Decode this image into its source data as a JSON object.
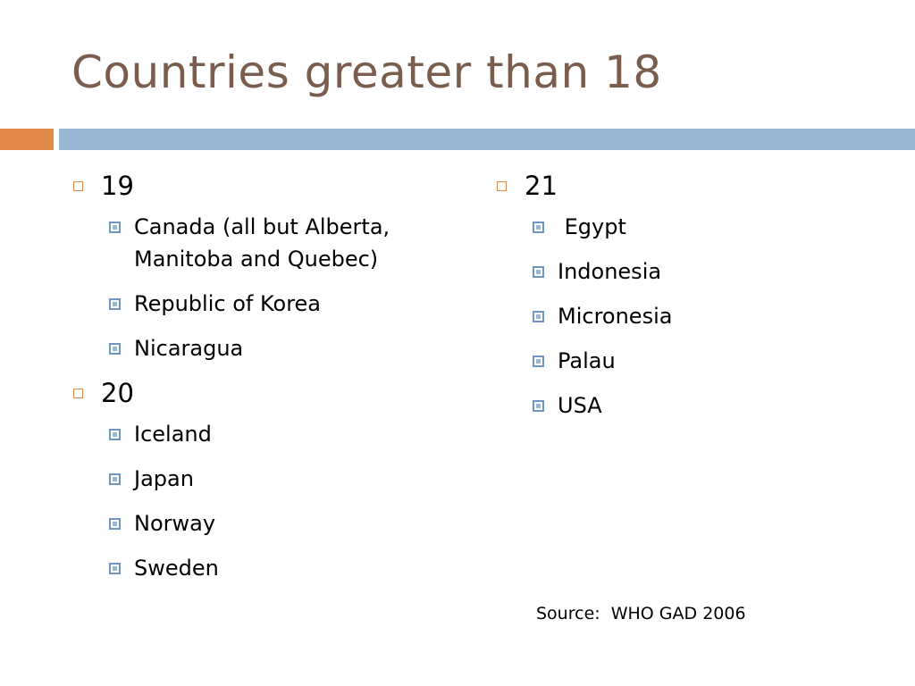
{
  "slide": {
    "title": "Countries greater than 18",
    "accent_colors": {
      "title": "#7a5d4d",
      "orange": "#e18a4a",
      "blue": "#97b7d2"
    }
  },
  "left_column": [
    {
      "label": "19",
      "items": [
        "Canada (all but Alberta, Manitoba and Quebec)",
        "Republic of Korea",
        "Nicaragua"
      ]
    },
    {
      "label": "20",
      "items": [
        "Iceland",
        "Japan",
        "Norway",
        "Sweden"
      ]
    }
  ],
  "right_column": [
    {
      "label": "21",
      "items": [
        " Egypt",
        "Indonesia",
        "Micronesia",
        "Palau",
        "USA"
      ]
    }
  ],
  "source": "Source:  WHO GAD 2006"
}
